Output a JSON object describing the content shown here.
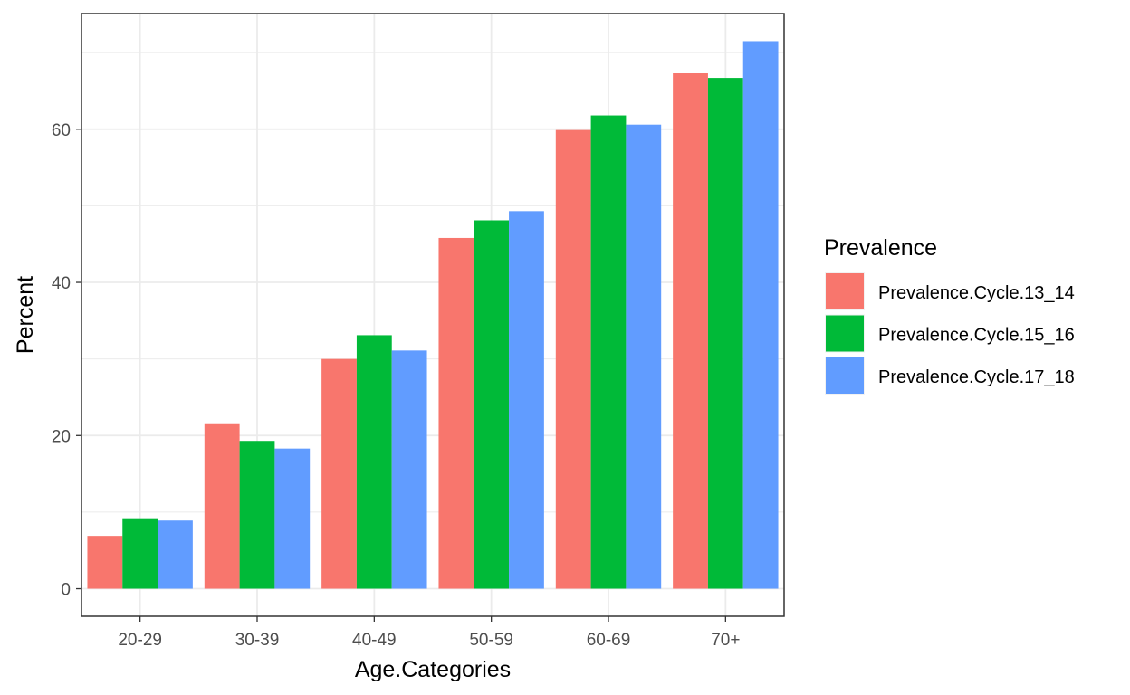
{
  "chart_data": {
    "type": "bar",
    "title": "",
    "xlabel": "Age.Categories",
    "ylabel": "Percent",
    "categories": [
      "20-29",
      "30-39",
      "40-49",
      "50-59",
      "60-69",
      "70+"
    ],
    "series": [
      {
        "name": "Prevalence.Cycle.13_14",
        "color": "#F8766D",
        "values": [
          6.9,
          21.6,
          30.0,
          45.8,
          59.9,
          67.3
        ]
      },
      {
        "name": "Prevalence.Cycle.15_16",
        "color": "#00BA38",
        "values": [
          9.2,
          19.3,
          33.1,
          48.1,
          61.8,
          66.7
        ]
      },
      {
        "name": "Prevalence.Cycle.17_18",
        "color": "#619CFF",
        "values": [
          8.9,
          18.3,
          31.1,
          49.3,
          60.6,
          71.5
        ]
      }
    ],
    "ylim": [
      -3.6,
      75.1
    ],
    "yticks": [
      0,
      20,
      40,
      60
    ],
    "grid": true,
    "legend": {
      "title": "Prevalence",
      "position": "right"
    }
  }
}
